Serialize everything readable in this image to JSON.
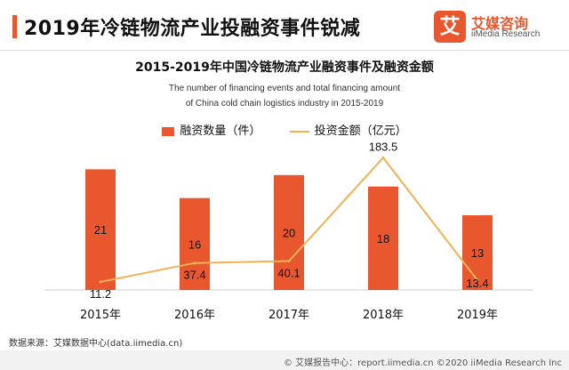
{
  "header": {
    "title": "2019年冷链物流产业投融资事件锐减",
    "logo_mark": "艾",
    "logo_cn": "艾媒咨询",
    "logo_en": "iiMedia Research"
  },
  "chart_data": {
    "type": "bar",
    "title": "2015-2019年中国冷链物流产业融资事件及融资金额",
    "subtitle_line1": "The number of financing events and total financing amount",
    "subtitle_line2": "of China cold chain logistics industry in 2015-2019",
    "categories": [
      "2015年",
      "2016年",
      "2017年",
      "2018年",
      "2019年"
    ],
    "series": [
      {
        "name": "融资数量（件）",
        "type": "bar",
        "color": "#e8572e",
        "values": [
          21,
          16,
          20,
          18,
          13
        ]
      },
      {
        "name": "投资金额（亿元）",
        "type": "line",
        "color": "#f2b155",
        "values": [
          11.2,
          37.4,
          40.1,
          183.5,
          13.4
        ]
      }
    ],
    "legend_position": "top-center",
    "grid": false
  },
  "footer": {
    "source": "数据来源：艾媒数据中心(data.iimedia.cn)",
    "copyright": "© 艾媒报告中心：report.iimedia.cn ©2020 iiMedia Research Inc"
  }
}
